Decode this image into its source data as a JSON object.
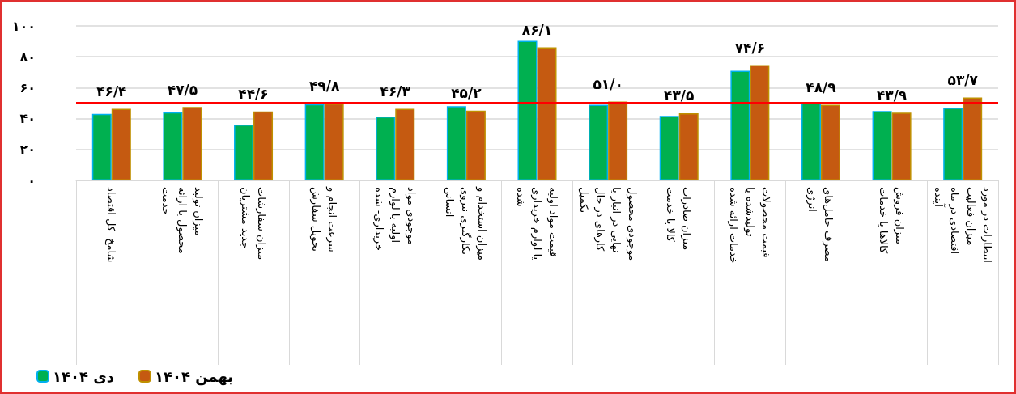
{
  "chart_data": {
    "type": "bar",
    "categories": [
      "شامخ  کل اقتصاد",
      "میزان تولید محصول یا ارائه خدمت",
      "میزان سفارشات جدید مشتریان",
      "سرعت انجام و تحویل سفارش",
      "موجودی مواد اولیه یا لوازم خریداری- شده",
      "میزان استخدام و بکارگیری نیروی انسانی",
      "قیمت مواد اولیه یا لوازم خریداری شده",
      "موجودی محصول نهایی در انبار یا کارهای در حال تکمیل",
      "میزان صادرات کالا یا خدمت",
      "قیمت محصولات تولیدشده یا خدمات ارائه شده",
      "مصرف حامل‌های انرژی",
      "میزان فروش کالاها یا خدمات",
      "انتظارات در مورد میزان فعالیت اقتصادی در ماه آینده"
    ],
    "series": [
      {
        "name": "دی ۱۴۰۴",
        "color": "#00b050",
        "values": [
          43.1,
          44.1,
          36.1,
          49.3,
          41.3,
          48.0,
          90.3,
          49.0,
          41.7,
          71.0,
          50.8,
          44.9,
          47.0
        ]
      },
      {
        "name": "بهمن ۱۴۰۴",
        "color": "#c55a11",
        "values": [
          46.4,
          47.5,
          44.6,
          49.8,
          46.3,
          45.2,
          86.1,
          51.0,
          43.5,
          74.6,
          48.9,
          43.9,
          53.7
        ],
        "value_labels": [
          "۴۶/۴",
          "۴۷/۵",
          "۴۴/۶",
          "۴۹/۸",
          "۴۶/۳",
          "۴۵/۲",
          "۸۶/۱",
          "۵۱/۰",
          "۴۳/۵",
          "۷۴/۶",
          "۴۸/۹",
          "۴۳/۹",
          "۵۳/۷"
        ]
      }
    ],
    "ylim": [
      0,
      100
    ],
    "yticks": [
      {
        "value": 0,
        "label": "۰"
      },
      {
        "value": 20,
        "label": "۲۰"
      },
      {
        "value": 40,
        "label": "۴۰"
      },
      {
        "value": 60,
        "label": "۶۰"
      },
      {
        "value": 80,
        "label": "۸۰"
      },
      {
        "value": 100,
        "label": "۱۰۰"
      }
    ],
    "grid": "y",
    "legend": "bottom left",
    "ref_lines": [
      {
        "axis": "y",
        "value": 50,
        "color": "#ff0000"
      }
    ]
  }
}
